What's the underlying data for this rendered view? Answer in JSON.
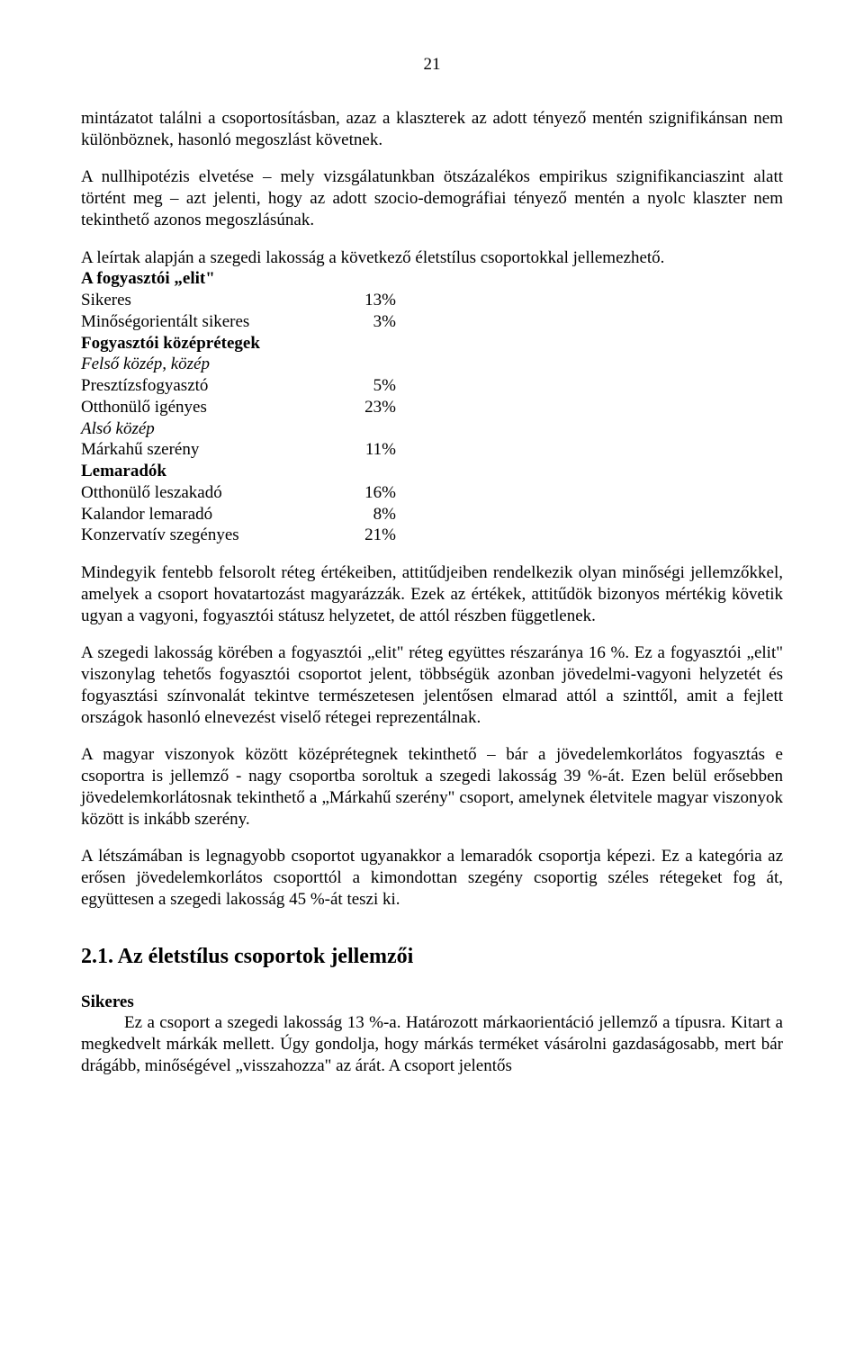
{
  "page_number": "21",
  "para1": "mintázatot találni a csoportosításban, azaz a klaszterek az adott tényező mentén szignifikánsan nem különböznek, hasonló megoszlást követnek.",
  "para2": "A nullhipotézis elvetése – mely vizsgálatunkban ötszázalékos empirikus szignifikanciaszint alatt történt meg – azt jelenti, hogy az adott szocio-demográfiai tényező mentén a nyolc klaszter nem tekinthető azonos megoszlásúnak.",
  "para3": "A leírtak alapján a szegedi lakosság a következő életstílus csoportokkal jellemezhető.",
  "groups": {
    "g1_title": "A fogyasztói „elit\"",
    "g1_items": [
      {
        "label": "Sikeres",
        "value": "13%"
      },
      {
        "label": "Minőségorientált sikeres",
        "value": "3%"
      }
    ],
    "g2_title": "Fogyasztói középrétegek",
    "g2_sub1": "Felső közép, közép",
    "g2_items1": [
      {
        "label": "Presztízsfogyasztó",
        "value": "5%"
      },
      {
        "label": "Otthonülő igényes",
        "value": "23%"
      }
    ],
    "g2_sub2": "Alsó közép",
    "g2_items2": [
      {
        "label": "Márkahű szerény",
        "value": "11%"
      }
    ],
    "g3_title": "Lemaradók",
    "g3_items": [
      {
        "label": "Otthonülő leszakadó",
        "value": "16%"
      },
      {
        "label": "Kalandor lemaradó",
        "value": "8%"
      },
      {
        "label": "Konzervatív szegényes",
        "value": "21%"
      }
    ]
  },
  "para4": "Mindegyik fentebb felsorolt réteg értékeiben, attitűdjeiben rendelkezik olyan minőségi jellemzőkkel, amelyek a csoport hovatartozást magyarázzák. Ezek az értékek, attitűdök bizonyos mértékig követik ugyan a vagyoni, fogyasztói státusz helyzetet, de attól részben függetlenek.",
  "para5": "A szegedi lakosság körében a fogyasztói „elit\" réteg együttes részaránya 16 %. Ez a fogyasztói „elit\" viszonylag tehetős fogyasztói csoportot jelent, többségük azonban jövedelmi-vagyoni helyzetét és fogyasztási színvonalát tekintve természetesen jelentősen elmarad attól a szinttől, amit a fejlett országok hasonló elnevezést viselő rétegei reprezentálnak.",
  "para6": "A magyar viszonyok között középrétegnek tekinthető – bár a jövedelemkorlátos fogyasztás e csoportra is jellemző - nagy csoportba soroltuk a szegedi lakosság 39 %-át. Ezen belül erősebben jövedelemkorlátosnak tekinthető a „Márkahű szerény\" csoport, amelynek életvitele magyar viszonyok között is inkább szerény.",
  "para7": "A létszámában is legnagyobb csoportot ugyanakkor a lemaradók csoportja képezi. Ez a kategória az erősen jövedelemkorlátos csoporttól a kimondottan szegény csoportig széles rétegeket fog át, együttesen a szegedi lakosság 45 %-át teszi ki.",
  "section_heading": "2.1. Az életstílus csoportok jellemzői",
  "sikeres_title": "Sikeres",
  "sikeres_body": "Ez a csoport a szegedi lakosság 13 %-a. Határozott márkaorientáció jellemző a típusra. Kitart a megkedvelt márkák mellett. Úgy gondolja, hogy márkás terméket vásárolni gazdaságosabb, mert bár drágább, minőségével „visszahozza\" az árát. A csoport jelentős"
}
